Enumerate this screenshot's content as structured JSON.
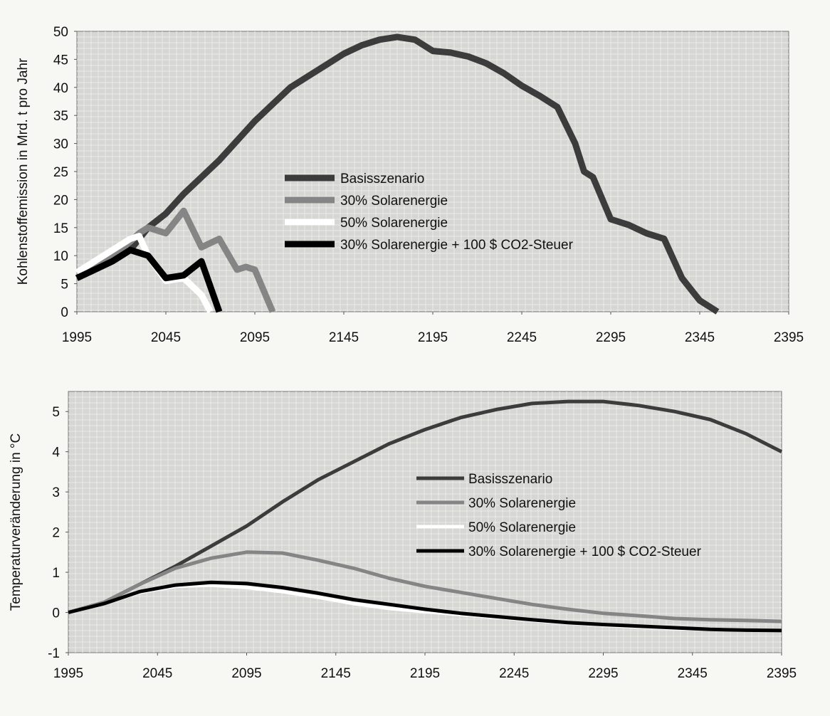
{
  "colors": {
    "background": "#f7f7f4",
    "plot_area": "#d6d6d3",
    "grid": "#ebebea",
    "Basisszenario": "#3c3c3c",
    "30% Solarenergie": "#858585",
    "50% Solarenergie": "#ffffff",
    "30% Solarenergie + 100 $ CO2-Steuer": "#000000"
  },
  "chart_data": [
    {
      "type": "line",
      "title": "",
      "xlabel": "",
      "ylabel": "Kohlenstoffemission in Mrd. t pro Jahr",
      "xlim": [
        1995,
        2395
      ],
      "ylim": [
        0,
        50
      ],
      "x_ticks": [
        "1995",
        "2045",
        "2095",
        "2145",
        "2195",
        "2245",
        "2295",
        "2345",
        "2395"
      ],
      "y_ticks": [
        "0",
        "5",
        "10",
        "15",
        "20",
        "25",
        "30",
        "35",
        "40",
        "45",
        "50"
      ],
      "grid": true,
      "legend_position": "center",
      "series": [
        {
          "name": "Basisszenario",
          "x": [
            1995,
            2005,
            2015,
            2025,
            2035,
            2045,
            2055,
            2065,
            2075,
            2085,
            2095,
            2105,
            2115,
            2125,
            2135,
            2145,
            2155,
            2165,
            2175,
            2185,
            2195,
            2205,
            2215,
            2225,
            2235,
            2245,
            2255,
            2265,
            2275,
            2280,
            2285,
            2295,
            2305,
            2315,
            2325,
            2335,
            2345,
            2355
          ],
          "y": [
            6,
            7.5,
            9,
            11,
            15,
            17.5,
            21,
            24,
            27,
            30.5,
            34,
            37,
            40,
            42,
            44,
            46,
            47.5,
            48.5,
            49,
            48.5,
            46.5,
            46.2,
            45.5,
            44.3,
            42.5,
            40.3,
            38.5,
            36.5,
            30,
            25,
            24,
            16.5,
            15.5,
            14,
            13,
            6,
            2,
            0
          ]
        },
        {
          "name": "30% Solarenergie",
          "x": [
            1995,
            2005,
            2015,
            2025,
            2030,
            2035,
            2045,
            2055,
            2065,
            2075,
            2085,
            2090,
            2095,
            2105
          ],
          "y": [
            6,
            8,
            10,
            12.5,
            14,
            15,
            14,
            18,
            11.5,
            13,
            7.5,
            8,
            7.5,
            0
          ]
        },
        {
          "name": "50% Solarenergie",
          "x": [
            1995,
            2005,
            2015,
            2025,
            2030,
            2035,
            2045,
            2055,
            2065,
            2070
          ],
          "y": [
            7,
            9,
            11,
            13,
            13.5,
            10,
            5.5,
            6,
            3,
            0
          ]
        },
        {
          "name": "30% Solarenergie + 100 $ CO2-Steuer",
          "x": [
            1995,
            2005,
            2015,
            2025,
            2035,
            2045,
            2055,
            2065,
            2075
          ],
          "y": [
            6,
            7.5,
            9,
            11,
            10,
            6,
            6.5,
            9,
            0
          ]
        }
      ]
    },
    {
      "type": "line",
      "title": "",
      "xlabel": "",
      "ylabel": "Temperaturveränderung in °C",
      "xlim": [
        1995,
        2395
      ],
      "ylim": [
        -1,
        5.5
      ],
      "x_ticks": [
        "1995",
        "2045",
        "2095",
        "2145",
        "2195",
        "2245",
        "2295",
        "2345",
        "2395"
      ],
      "y_ticks": [
        "-1",
        "0",
        "1",
        "2",
        "3",
        "4",
        "5"
      ],
      "grid": true,
      "legend_position": "center-right",
      "series": [
        {
          "name": "Basisszenario",
          "x": [
            1995,
            2015,
            2035,
            2055,
            2075,
            2095,
            2115,
            2135,
            2155,
            2175,
            2195,
            2215,
            2235,
            2255,
            2275,
            2295,
            2315,
            2335,
            2355,
            2375,
            2395
          ],
          "y": [
            0,
            0.25,
            0.7,
            1.15,
            1.65,
            2.15,
            2.75,
            3.3,
            3.75,
            4.2,
            4.55,
            4.85,
            5.05,
            5.2,
            5.25,
            5.25,
            5.15,
            5.0,
            4.8,
            4.45,
            4.0
          ]
        },
        {
          "name": "30% Solarenergie",
          "x": [
            1995,
            2015,
            2035,
            2055,
            2075,
            2095,
            2115,
            2135,
            2155,
            2175,
            2195,
            2215,
            2235,
            2255,
            2275,
            2295,
            2315,
            2335,
            2355,
            2375,
            2395
          ],
          "y": [
            0,
            0.25,
            0.7,
            1.1,
            1.35,
            1.5,
            1.48,
            1.3,
            1.1,
            0.85,
            0.65,
            0.5,
            0.35,
            0.2,
            0.08,
            -0.02,
            -0.08,
            -0.15,
            -0.18,
            -0.2,
            -0.22
          ]
        },
        {
          "name": "50% Solarenergie",
          "x": [
            1995,
            2015,
            2035,
            2055,
            2075,
            2095,
            2115,
            2135,
            2155,
            2175,
            2195,
            2215,
            2235,
            2255,
            2275,
            2295,
            2315,
            2335,
            2355,
            2375,
            2395
          ],
          "y": [
            0,
            0.22,
            0.5,
            0.65,
            0.68,
            0.62,
            0.52,
            0.38,
            0.22,
            0.1,
            0.02,
            -0.05,
            -0.12,
            -0.2,
            -0.26,
            -0.32,
            -0.36,
            -0.4,
            -0.42,
            -0.44,
            -0.45
          ]
        },
        {
          "name": "30% Solarenergie + 100 $ CO2-Steuer",
          "x": [
            1995,
            2015,
            2035,
            2055,
            2075,
            2095,
            2115,
            2135,
            2155,
            2175,
            2195,
            2215,
            2235,
            2255,
            2275,
            2295,
            2315,
            2335,
            2355,
            2375,
            2395
          ],
          "y": [
            0,
            0.22,
            0.52,
            0.68,
            0.75,
            0.72,
            0.62,
            0.48,
            0.32,
            0.2,
            0.08,
            -0.02,
            -0.1,
            -0.18,
            -0.25,
            -0.3,
            -0.34,
            -0.38,
            -0.42,
            -0.44,
            -0.45
          ]
        }
      ]
    }
  ]
}
